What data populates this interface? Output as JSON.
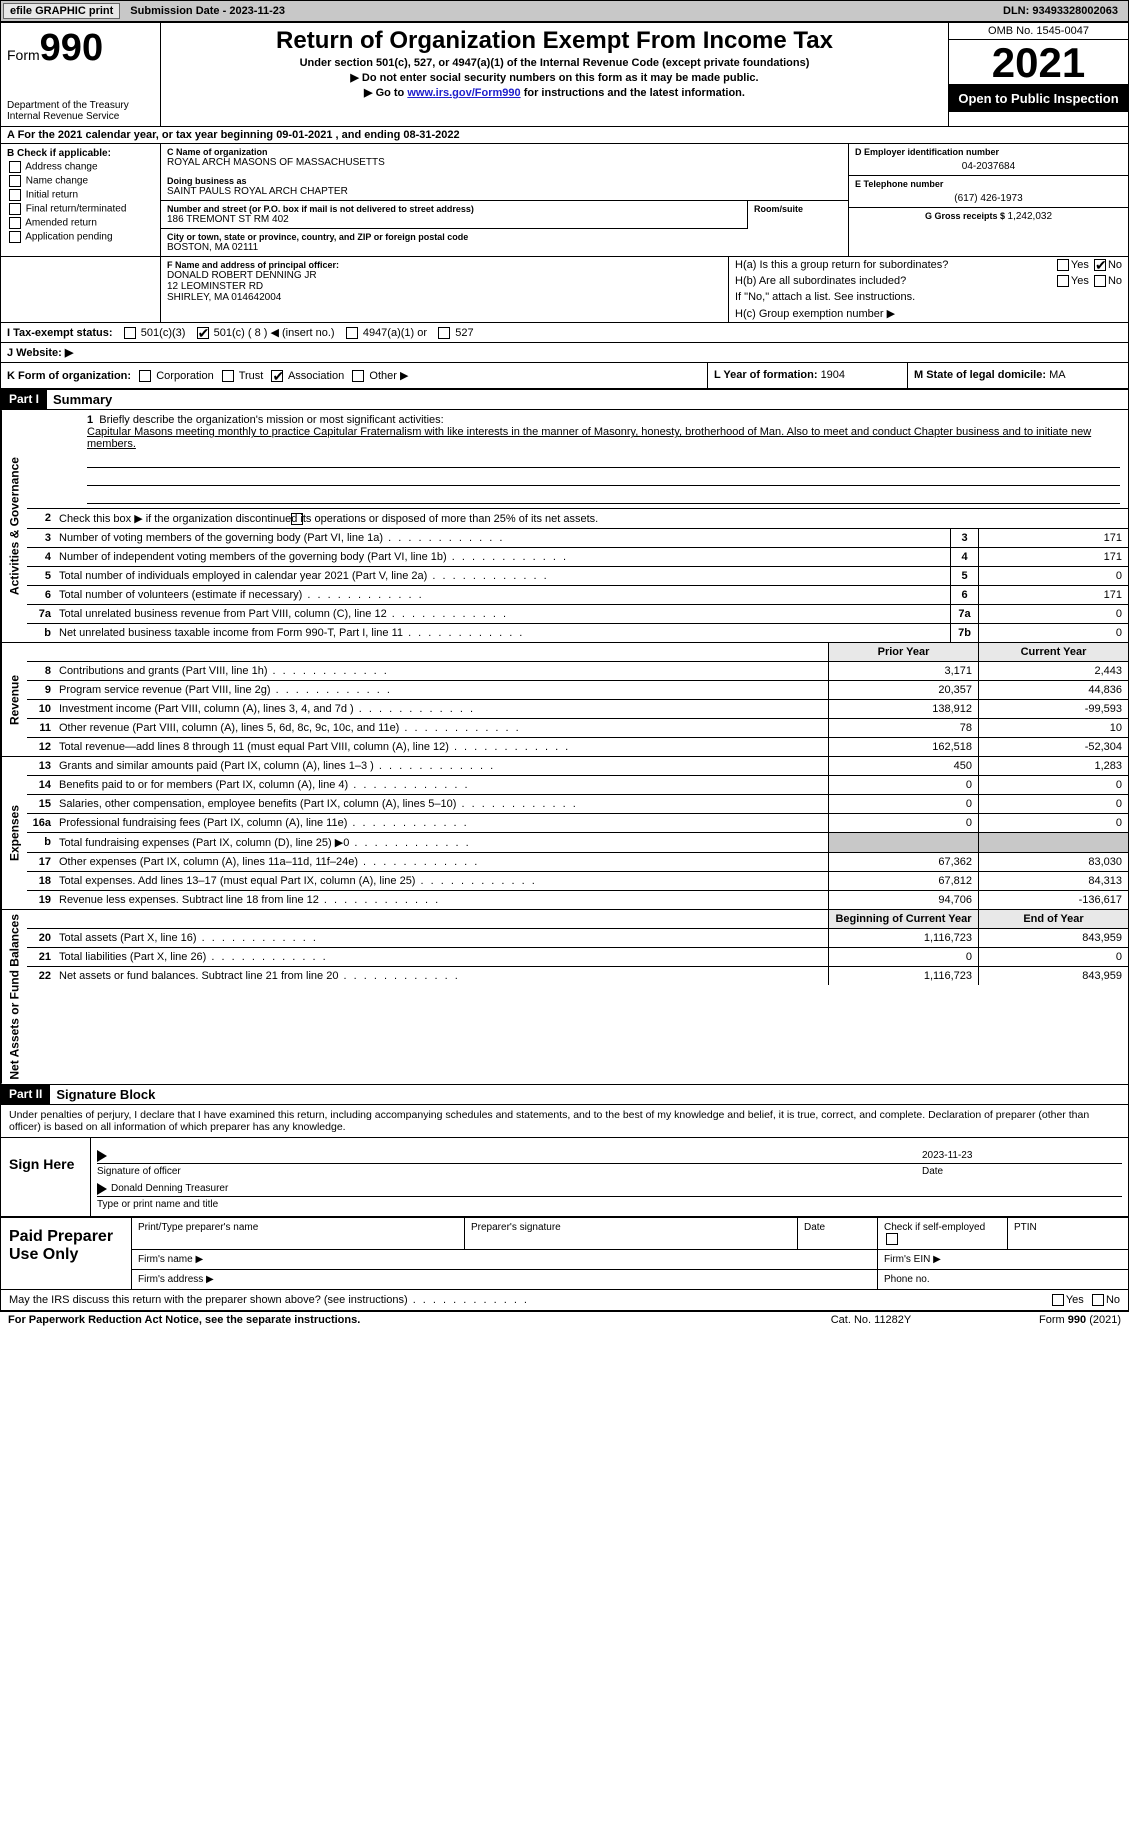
{
  "topbar": {
    "efile": "efile GRAPHIC print",
    "submission_label": "Submission Date - ",
    "submission_date": "2023-11-23",
    "dln_label": "DLN: ",
    "dln": "93493328002063"
  },
  "header": {
    "form_word": "Form",
    "form_num": "990",
    "dept1": "Department of the Treasury",
    "dept2": "Internal Revenue Service",
    "title": "Return of Organization Exempt From Income Tax",
    "subtitle1": "Under section 501(c), 527, or 4947(a)(1) of the Internal Revenue Code (except private foundations)",
    "subtitle2": "▶ Do not enter social security numbers on this form as it may be made public.",
    "subtitle3_pre": "▶ Go to ",
    "subtitle3_link": "www.irs.gov/Form990",
    "subtitle3_post": " for instructions and the latest information.",
    "omb": "OMB No. 1545-0047",
    "year": "2021",
    "open": "Open to Public Inspection"
  },
  "row_a": "A For the 2021 calendar year, or tax year beginning 09-01-2021    , and ending 08-31-2022",
  "col_b": {
    "label": "B Check if applicable:",
    "opts": [
      "Address change",
      "Name change",
      "Initial return",
      "Final return/terminated",
      "Amended return",
      "Application pending"
    ]
  },
  "col_c": {
    "name_lbl": "C Name of organization",
    "name": "ROYAL ARCH MASONS OF MASSACHUSETTS",
    "dba_lbl": "Doing business as",
    "dba": "SAINT PAULS ROYAL ARCH CHAPTER",
    "street_lbl": "Number and street (or P.O. box if mail is not delivered to street address)",
    "street": "186 TREMONT ST RM 402",
    "suite_lbl": "Room/suite",
    "city_lbl": "City or town, state or province, country, and ZIP or foreign postal code",
    "city": "BOSTON, MA  02111"
  },
  "col_d": {
    "ein_lbl": "D Employer identification number",
    "ein": "04-2037684",
    "tel_lbl": "E Telephone number",
    "tel": "(617) 426-1973",
    "gross_lbl": "G Gross receipts $ ",
    "gross": "1,242,032"
  },
  "section_f": {
    "lbl": "F Name and address of principal officer:",
    "name": "DONALD ROBERT DENNING JR",
    "addr1": "12 LEOMINSTER RD",
    "addr2": "SHIRLEY, MA  014642004"
  },
  "section_h": {
    "ha": "H(a)  Is this a group return for subordinates?",
    "hb": "H(b)  Are all subordinates included?",
    "hb_note": "If \"No,\" attach a list. See instructions.",
    "hc": "H(c)  Group exemption number ▶",
    "yes": "Yes",
    "no": "No"
  },
  "row_i": {
    "lbl": "I    Tax-exempt status:",
    "o1": "501(c)(3)",
    "o2": "501(c) ( 8 ) ◀ (insert no.)",
    "o3": "4947(a)(1) or",
    "o4": "527"
  },
  "row_j": {
    "lbl": "J   Website: ▶"
  },
  "row_k": {
    "lbl": "K Form of organization:",
    "o1": "Corporation",
    "o2": "Trust",
    "o3": "Association",
    "o4": "Other ▶"
  },
  "row_l": {
    "lbl": "L Year of formation: ",
    "val": "1904"
  },
  "row_m": {
    "lbl": "M State of legal domicile: ",
    "val": "MA"
  },
  "part1": {
    "hdr": "Part I",
    "title": "Summary",
    "line1_lbl": "Briefly describe the organization's mission or most significant activities:",
    "mission": "Capitular Masons meeting monthly to practice Capitular Fraternalism with like interests in the manner of Masonry, honesty, brotherhood of Man. Also to meet and conduct Chapter business and to initiate new members.",
    "line2": "Check this box ▶        if the organization discontinued its operations or disposed of more than 25% of its net assets."
  },
  "vtabs": {
    "ag": "Activities & Governance",
    "rev": "Revenue",
    "exp": "Expenses",
    "net": "Net Assets or Fund Balances"
  },
  "ag_rows": [
    {
      "n": "3",
      "d": "Number of voting members of the governing body (Part VI, line 1a)",
      "box": "3",
      "v": "171"
    },
    {
      "n": "4",
      "d": "Number of independent voting members of the governing body (Part VI, line 1b)",
      "box": "4",
      "v": "171"
    },
    {
      "n": "5",
      "d": "Total number of individuals employed in calendar year 2021 (Part V, line 2a)",
      "box": "5",
      "v": "0"
    },
    {
      "n": "6",
      "d": "Total number of volunteers (estimate if necessary)",
      "box": "6",
      "v": "171"
    },
    {
      "n": "7a",
      "d": "Total unrelated business revenue from Part VIII, column (C), line 12",
      "box": "7a",
      "v": "0"
    },
    {
      "n": "b",
      "d": "Net unrelated business taxable income from Form 990-T, Part I, line 11",
      "box": "7b",
      "v": "0"
    }
  ],
  "colhdrs": {
    "prior": "Prior Year",
    "current": "Current Year",
    "boy": "Beginning of Current Year",
    "eoy": "End of Year"
  },
  "rev_rows": [
    {
      "n": "8",
      "d": "Contributions and grants (Part VIII, line 1h)",
      "p": "3,171",
      "c": "2,443"
    },
    {
      "n": "9",
      "d": "Program service revenue (Part VIII, line 2g)",
      "p": "20,357",
      "c": "44,836"
    },
    {
      "n": "10",
      "d": "Investment income (Part VIII, column (A), lines 3, 4, and 7d )",
      "p": "138,912",
      "c": "-99,593"
    },
    {
      "n": "11",
      "d": "Other revenue (Part VIII, column (A), lines 5, 6d, 8c, 9c, 10c, and 11e)",
      "p": "78",
      "c": "10"
    },
    {
      "n": "12",
      "d": "Total revenue—add lines 8 through 11 (must equal Part VIII, column (A), line 12)",
      "p": "162,518",
      "c": "-52,304"
    }
  ],
  "exp_rows": [
    {
      "n": "13",
      "d": "Grants and similar amounts paid (Part IX, column (A), lines 1–3 )",
      "p": "450",
      "c": "1,283"
    },
    {
      "n": "14",
      "d": "Benefits paid to or for members (Part IX, column (A), line 4)",
      "p": "0",
      "c": "0"
    },
    {
      "n": "15",
      "d": "Salaries, other compensation, employee benefits (Part IX, column (A), lines 5–10)",
      "p": "0",
      "c": "0"
    },
    {
      "n": "16a",
      "d": "Professional fundraising fees (Part IX, column (A), line 11e)",
      "p": "0",
      "c": "0"
    },
    {
      "n": "b",
      "d": "Total fundraising expenses (Part IX, column (D), line 25) ▶0",
      "p": "",
      "c": "",
      "shade": true
    },
    {
      "n": "17",
      "d": "Other expenses (Part IX, column (A), lines 11a–11d, 11f–24e)",
      "p": "67,362",
      "c": "83,030"
    },
    {
      "n": "18",
      "d": "Total expenses. Add lines 13–17 (must equal Part IX, column (A), line 25)",
      "p": "67,812",
      "c": "84,313"
    },
    {
      "n": "19",
      "d": "Revenue less expenses. Subtract line 18 from line 12",
      "p": "94,706",
      "c": "-136,617"
    }
  ],
  "net_rows": [
    {
      "n": "20",
      "d": "Total assets (Part X, line 16)",
      "p": "1,116,723",
      "c": "843,959"
    },
    {
      "n": "21",
      "d": "Total liabilities (Part X, line 26)",
      "p": "0",
      "c": "0"
    },
    {
      "n": "22",
      "d": "Net assets or fund balances. Subtract line 21 from line 20",
      "p": "1,116,723",
      "c": "843,959"
    }
  ],
  "part2": {
    "hdr": "Part II",
    "title": "Signature Block",
    "intro": "Under penalties of perjury, I declare that I have examined this return, including accompanying schedules and statements, and to the best of my knowledge and belief, it is true, correct, and complete. Declaration of preparer (other than officer) is based on all information of which preparer has any knowledge."
  },
  "sign": {
    "here": "Sign Here",
    "sig_of_officer": "Signature of officer",
    "date_lbl": "Date",
    "date": "2023-11-23",
    "name_title": "Donald Denning  Treasurer",
    "type_lbl": "Type or print name and title"
  },
  "prep": {
    "title": "Paid Preparer Use Only",
    "r1": [
      "Print/Type preparer's name",
      "Preparer's signature",
      "Date",
      "Check        if self-employed",
      "PTIN"
    ],
    "r2a": "Firm's name   ▶",
    "r2b": "Firm's EIN ▶",
    "r3a": "Firm's address ▶",
    "r3b": "Phone no."
  },
  "footer": {
    "irs_q": "May the IRS discuss this return with the preparer shown above? (see instructions)",
    "paperwork": "For Paperwork Reduction Act Notice, see the separate instructions.",
    "cat": "Cat. No. 11282Y",
    "formref": "Form 990 (2021)"
  }
}
